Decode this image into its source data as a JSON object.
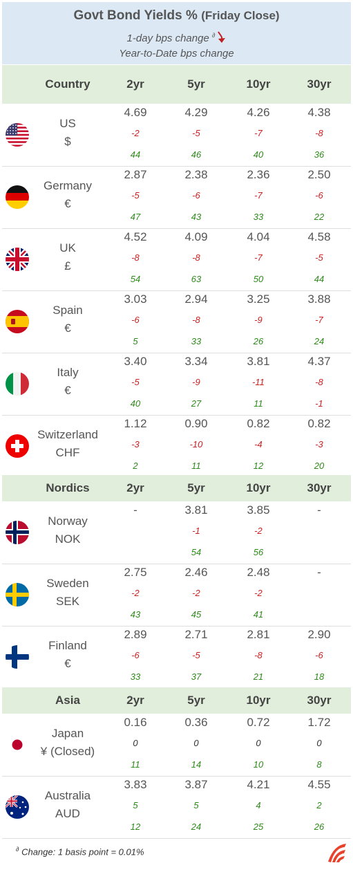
{
  "header": {
    "title": "Govt Bond Yields %",
    "title_suffix": "(Friday Close)",
    "line1": "1-day bps change",
    "line1_marker": "∂",
    "line2": "Year-to-Date bps change"
  },
  "tenors": [
    "2yr",
    "5yr",
    "10yr",
    "30yr"
  ],
  "sections": [
    {
      "label": "Country",
      "rows": [
        {
          "country": "US",
          "currency": "$",
          "flag": "us-flag-icon",
          "yields": [
            "4.69",
            "4.29",
            "4.26",
            "4.38"
          ],
          "day": [
            "-2",
            "-5",
            "-7",
            "-8"
          ],
          "ytd": [
            "44",
            "46",
            "40",
            "36"
          ]
        },
        {
          "country": "Germany",
          "currency": "€",
          "flag": "germany-flag-icon",
          "yields": [
            "2.87",
            "2.38",
            "2.36",
            "2.50"
          ],
          "day": [
            "-5",
            "-6",
            "-7",
            "-6"
          ],
          "ytd": [
            "47",
            "43",
            "33",
            "22"
          ]
        },
        {
          "country": "UK",
          "currency": "£",
          "flag": "uk-flag-icon",
          "yields": [
            "4.52",
            "4.09",
            "4.04",
            "4.58"
          ],
          "day": [
            "-8",
            "-8",
            "-7",
            "-5"
          ],
          "ytd": [
            "54",
            "63",
            "50",
            "44"
          ]
        },
        {
          "country": "Spain",
          "currency": "€",
          "flag": "spain-flag-icon",
          "yields": [
            "3.03",
            "2.94",
            "3.25",
            "3.88"
          ],
          "day": [
            "-6",
            "-8",
            "-9",
            "-7"
          ],
          "ytd": [
            "5",
            "33",
            "26",
            "24"
          ]
        },
        {
          "country": "Italy",
          "currency": "€",
          "flag": "italy-flag-icon",
          "yields": [
            "3.40",
            "3.34",
            "3.81",
            "4.37"
          ],
          "day": [
            "-5",
            "-9",
            "-11",
            "-8"
          ],
          "ytd": [
            "40",
            "27",
            "11",
            "-1"
          ]
        },
        {
          "country": "Switzerland",
          "currency": "CHF",
          "flag": "switzerland-flag-icon",
          "yields": [
            "1.12",
            "0.90",
            "0.82",
            "0.82"
          ],
          "day": [
            "-3",
            "-10",
            "-4",
            "-3"
          ],
          "ytd": [
            "2",
            "11",
            "12",
            "20"
          ]
        }
      ]
    },
    {
      "label": "Nordics",
      "rows": [
        {
          "country": "Norway",
          "currency": "NOK",
          "flag": "norway-flag-icon",
          "yields": [
            "-",
            "3.81",
            "3.85",
            "-"
          ],
          "day": [
            "",
            "-1",
            "-2",
            ""
          ],
          "ytd": [
            "",
            "54",
            "56",
            ""
          ]
        },
        {
          "country": "Sweden",
          "currency": "SEK",
          "flag": "sweden-flag-icon",
          "yields": [
            "2.75",
            "2.46",
            "2.48",
            "-"
          ],
          "day": [
            "-2",
            "-2",
            "-2",
            ""
          ],
          "ytd": [
            "43",
            "45",
            "41",
            ""
          ]
        },
        {
          "country": "Finland",
          "currency": "€",
          "flag": "finland-flag-icon",
          "yields": [
            "2.89",
            "2.71",
            "2.81",
            "2.90"
          ],
          "day": [
            "-6",
            "-5",
            "-8",
            "-6"
          ],
          "ytd": [
            "33",
            "37",
            "21",
            "18"
          ]
        }
      ]
    },
    {
      "label": "Asia",
      "rows": [
        {
          "country": "Japan",
          "currency": "¥  (Closed)",
          "flag": "japan-flag-icon",
          "yields": [
            "0.16",
            "0.36",
            "0.72",
            "1.72"
          ],
          "day": [
            "0",
            "0",
            "0",
            "0"
          ],
          "ytd": [
            "11",
            "14",
            "10",
            "8"
          ]
        },
        {
          "country": "Australia",
          "currency": "AUD",
          "flag": "australia-flag-icon",
          "yields": [
            "3.83",
            "3.87",
            "4.21",
            "4.55"
          ],
          "day": [
            "5",
            "5",
            "4",
            "2"
          ],
          "ytd": [
            "12",
            "24",
            "25",
            "26"
          ]
        }
      ]
    }
  ],
  "footer": {
    "note": "Change: 1 basis point = 0.01%",
    "marker": "∂",
    "logo": "brand-logo"
  },
  "colors": {
    "header_bg": "#dce9f5",
    "section_bg": "#e1eedb",
    "negative": "#cc1f1f",
    "positive": "#2e8a1a",
    "logo": "#e8412c"
  },
  "chart_data": {
    "type": "table",
    "title": "Govt Bond Yields % (Friday Close)",
    "columns": [
      "2yr",
      "5yr",
      "10yr",
      "30yr"
    ],
    "rows": [
      {
        "country": "US",
        "yields": [
          4.69,
          4.29,
          4.26,
          4.38
        ],
        "day_bps": [
          -2,
          -5,
          -7,
          -8
        ],
        "ytd_bps": [
          44,
          46,
          40,
          36
        ]
      },
      {
        "country": "Germany",
        "yields": [
          2.87,
          2.38,
          2.36,
          2.5
        ],
        "day_bps": [
          -5,
          -6,
          -7,
          -6
        ],
        "ytd_bps": [
          47,
          43,
          33,
          22
        ]
      },
      {
        "country": "UK",
        "yields": [
          4.52,
          4.09,
          4.04,
          4.58
        ],
        "day_bps": [
          -8,
          -8,
          -7,
          -5
        ],
        "ytd_bps": [
          54,
          63,
          50,
          44
        ]
      },
      {
        "country": "Spain",
        "yields": [
          3.03,
          2.94,
          3.25,
          3.88
        ],
        "day_bps": [
          -6,
          -8,
          -9,
          -7
        ],
        "ytd_bps": [
          5,
          33,
          26,
          24
        ]
      },
      {
        "country": "Italy",
        "yields": [
          3.4,
          3.34,
          3.81,
          4.37
        ],
        "day_bps": [
          -5,
          -9,
          -11,
          -8
        ],
        "ytd_bps": [
          40,
          27,
          11,
          -1
        ]
      },
      {
        "country": "Switzerland",
        "yields": [
          1.12,
          0.9,
          0.82,
          0.82
        ],
        "day_bps": [
          -3,
          -10,
          -4,
          -3
        ],
        "ytd_bps": [
          2,
          11,
          12,
          20
        ]
      },
      {
        "country": "Norway",
        "yields": [
          null,
          3.81,
          3.85,
          null
        ],
        "day_bps": [
          null,
          -1,
          -2,
          null
        ],
        "ytd_bps": [
          null,
          54,
          56,
          null
        ]
      },
      {
        "country": "Sweden",
        "yields": [
          2.75,
          2.46,
          2.48,
          null
        ],
        "day_bps": [
          -2,
          -2,
          -2,
          null
        ],
        "ytd_bps": [
          43,
          45,
          41,
          null
        ]
      },
      {
        "country": "Finland",
        "yields": [
          2.89,
          2.71,
          2.81,
          2.9
        ],
        "day_bps": [
          -6,
          -5,
          -8,
          -6
        ],
        "ytd_bps": [
          33,
          37,
          21,
          18
        ]
      },
      {
        "country": "Japan",
        "yields": [
          0.16,
          0.36,
          0.72,
          1.72
        ],
        "day_bps": [
          0,
          0,
          0,
          0
        ],
        "ytd_bps": [
          11,
          14,
          10,
          8
        ]
      },
      {
        "country": "Australia",
        "yields": [
          3.83,
          3.87,
          4.21,
          4.55
        ],
        "day_bps": [
          5,
          5,
          4,
          2
        ],
        "ytd_bps": [
          12,
          24,
          25,
          26
        ]
      }
    ]
  }
}
